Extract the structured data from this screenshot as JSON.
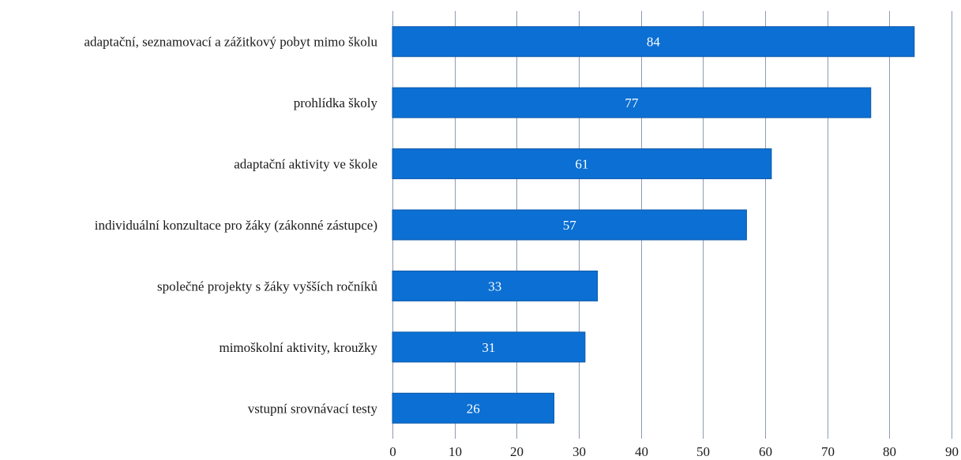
{
  "chart_data": {
    "type": "bar",
    "orientation": "horizontal",
    "categories": [
      "adaptační, seznamovací a zážitkový pobyt mimo školu",
      "prohlídka školy",
      "adaptační aktivity ve škole",
      "individuální konzultace pro žáky (zákonné zástupce)",
      "společné projekty s žáky vyšších ročníků",
      "mimoškolní aktivity, kroužky",
      "vstupní srovnávací testy"
    ],
    "values": [
      84,
      77,
      61,
      57,
      33,
      31,
      26
    ],
    "data_labels": [
      "84",
      "77",
      "61",
      "57",
      "33",
      "31",
      "26"
    ],
    "xlim": [
      0,
      90
    ],
    "xticks": [
      "0",
      "10",
      "20",
      "30",
      "40",
      "50",
      "60",
      "70",
      "80",
      "90"
    ],
    "grid": "vertical",
    "legend": "none",
    "bar_color": "#0b6fd3",
    "label_color": "#ffffff"
  }
}
